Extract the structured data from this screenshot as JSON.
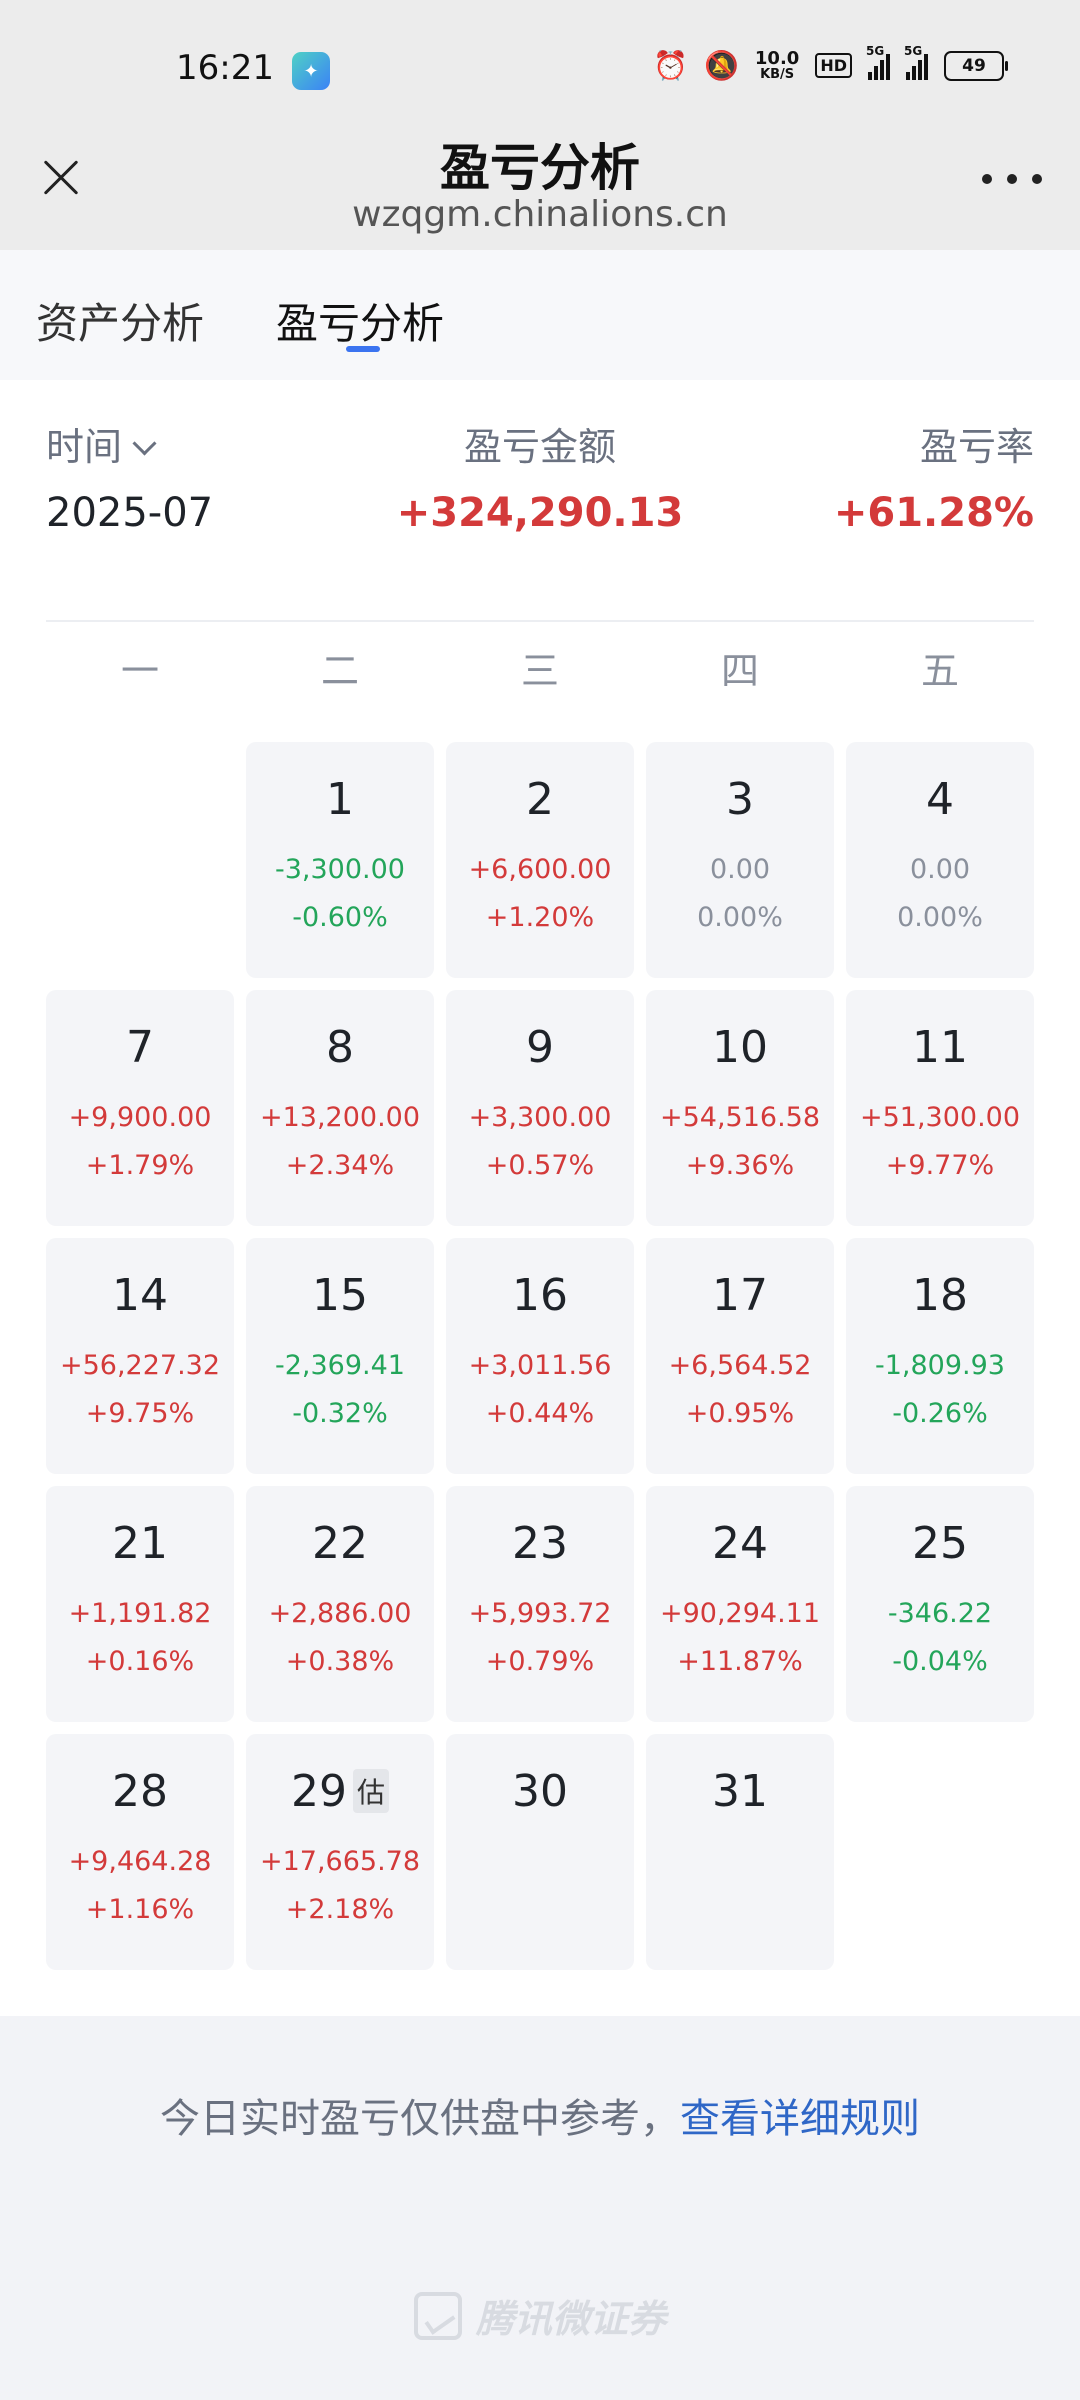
{
  "status": {
    "time": "16:21",
    "net_speed_value": "10.0",
    "net_speed_unit": "KB/S",
    "hd_label": "HD",
    "sig1_label": "5G",
    "sig2_label": "5G",
    "battery": "49"
  },
  "nav": {
    "title": "盈亏分析",
    "subtitle": "wzqgm.chinalions.cn"
  },
  "tabs": [
    {
      "label": "资产分析"
    },
    {
      "label": "盈亏分析"
    }
  ],
  "summary": {
    "time_label": "时间",
    "amount_label": "盈亏金额",
    "rate_label": "盈亏率",
    "period": "2025-07",
    "amount": "+324,290.13",
    "rate": "+61.28%"
  },
  "weekdays": [
    "一",
    "二",
    "三",
    "四",
    "五"
  ],
  "calendar": [
    {
      "day": "1",
      "amount": "-3,300.00",
      "pct": "-0.60%",
      "trend": "down",
      "col": 1,
      "row": 0
    },
    {
      "day": "2",
      "amount": "+6,600.00",
      "pct": "+1.20%",
      "trend": "up",
      "col": 2,
      "row": 0
    },
    {
      "day": "3",
      "amount": "0.00",
      "pct": "0.00%",
      "trend": "flat",
      "col": 3,
      "row": 0
    },
    {
      "day": "4",
      "amount": "0.00",
      "pct": "0.00%",
      "trend": "flat",
      "col": 4,
      "row": 0
    },
    {
      "day": "7",
      "amount": "+9,900.00",
      "pct": "+1.79%",
      "trend": "up",
      "col": 0,
      "row": 1
    },
    {
      "day": "8",
      "amount": "+13,200.00",
      "pct": "+2.34%",
      "trend": "up",
      "col": 1,
      "row": 1
    },
    {
      "day": "9",
      "amount": "+3,300.00",
      "pct": "+0.57%",
      "trend": "up",
      "col": 2,
      "row": 1
    },
    {
      "day": "10",
      "amount": "+54,516.58",
      "pct": "+9.36%",
      "trend": "up",
      "col": 3,
      "row": 1
    },
    {
      "day": "11",
      "amount": "+51,300.00",
      "pct": "+9.77%",
      "trend": "up",
      "col": 4,
      "row": 1
    },
    {
      "day": "14",
      "amount": "+56,227.32",
      "pct": "+9.75%",
      "trend": "up",
      "col": 0,
      "row": 2
    },
    {
      "day": "15",
      "amount": "-2,369.41",
      "pct": "-0.32%",
      "trend": "down",
      "col": 1,
      "row": 2
    },
    {
      "day": "16",
      "amount": "+3,011.56",
      "pct": "+0.44%",
      "trend": "up",
      "col": 2,
      "row": 2
    },
    {
      "day": "17",
      "amount": "+6,564.52",
      "pct": "+0.95%",
      "trend": "up",
      "col": 3,
      "row": 2
    },
    {
      "day": "18",
      "amount": "-1,809.93",
      "pct": "-0.26%",
      "trend": "down",
      "col": 4,
      "row": 2
    },
    {
      "day": "21",
      "amount": "+1,191.82",
      "pct": "+0.16%",
      "trend": "up",
      "col": 0,
      "row": 3
    },
    {
      "day": "22",
      "amount": "+2,886.00",
      "pct": "+0.38%",
      "trend": "up",
      "col": 1,
      "row": 3
    },
    {
      "day": "23",
      "amount": "+5,993.72",
      "pct": "+0.79%",
      "trend": "up",
      "col": 2,
      "row": 3
    },
    {
      "day": "24",
      "amount": "+90,294.11",
      "pct": "+11.87%",
      "trend": "up",
      "col": 3,
      "row": 3
    },
    {
      "day": "25",
      "amount": "-346.22",
      "pct": "-0.04%",
      "trend": "down",
      "col": 4,
      "row": 3
    },
    {
      "day": "28",
      "amount": "+9,464.28",
      "pct": "+1.16%",
      "trend": "up",
      "col": 0,
      "row": 4
    },
    {
      "day": "29",
      "amount": "+17,665.78",
      "pct": "+2.18%",
      "trend": "up",
      "col": 1,
      "row": 4,
      "badge": "估"
    },
    {
      "day": "30",
      "amount": "",
      "pct": "",
      "trend": "flat",
      "col": 2,
      "row": 4
    },
    {
      "day": "31",
      "amount": "",
      "pct": "",
      "trend": "flat",
      "col": 3,
      "row": 4
    }
  ],
  "footer": {
    "note": "今日实时盈亏仅供盘中参考，",
    "link": "查看详细规则",
    "brand": "腾讯微证券"
  },
  "colors": {
    "up": "#d33a3a",
    "down": "#23a55a",
    "accent": "#3b74f0"
  }
}
